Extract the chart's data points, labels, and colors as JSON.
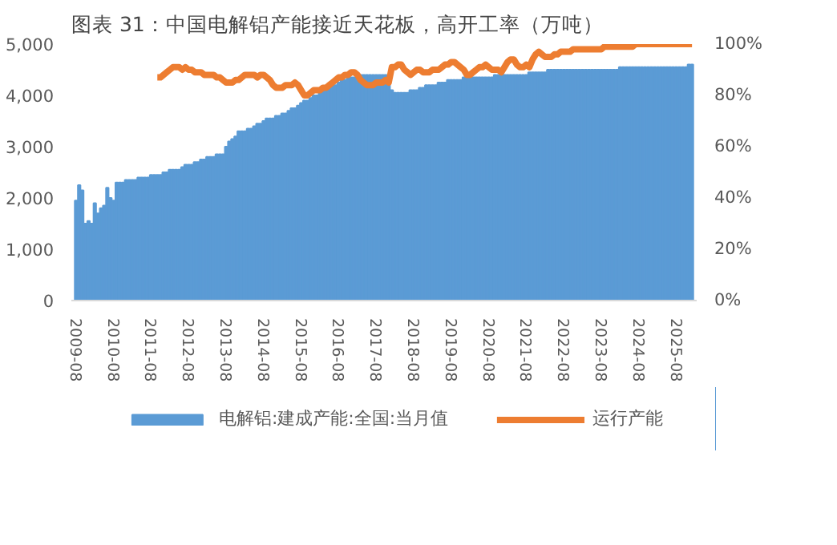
{
  "chart_data": {
    "type": "bar",
    "title": "图表 31：中国电解铝产能接近天花板，高开工率（万吨）",
    "categories": [
      "2009-08",
      null,
      null,
      null,
      null,
      null,
      null,
      null,
      null,
      null,
      null,
      null,
      "2010-08",
      null,
      null,
      null,
      null,
      null,
      null,
      null,
      null,
      null,
      null,
      null,
      "2011-08",
      null,
      null,
      null,
      null,
      null,
      null,
      null,
      null,
      null,
      null,
      null,
      "2012-08",
      null,
      null,
      null,
      null,
      null,
      null,
      null,
      null,
      null,
      null,
      null,
      "2013-08",
      null,
      null,
      null,
      null,
      null,
      null,
      null,
      null,
      null,
      null,
      null,
      "2014-08",
      null,
      null,
      null,
      null,
      null,
      null,
      null,
      null,
      null,
      null,
      null,
      "2015-08",
      null,
      null,
      null,
      null,
      null,
      null,
      null,
      null,
      null,
      null,
      null,
      "2016-08",
      null,
      null,
      null,
      null,
      null,
      null,
      null,
      null,
      null,
      null,
      null,
      "2017-08",
      null,
      null,
      null,
      null,
      null,
      null,
      null,
      null,
      null,
      null,
      null,
      "2018-08",
      null,
      null,
      null,
      null,
      null,
      null,
      null,
      null,
      null,
      null,
      null,
      "2019-08",
      null,
      null,
      null,
      null,
      null,
      null,
      null,
      null,
      null,
      null,
      null,
      "2020-08",
      null,
      null,
      null,
      null,
      null,
      null,
      null,
      null,
      null,
      null,
      null,
      "2021-08",
      null,
      null,
      null,
      null,
      null,
      null,
      null,
      null,
      null,
      null,
      null,
      "2022-08",
      null,
      null,
      null,
      null,
      null,
      null,
      null,
      null,
      null,
      null,
      null,
      "2023-08",
      null,
      null,
      null,
      null,
      null,
      null,
      null,
      null,
      null,
      null,
      null,
      "2024-08",
      null,
      null,
      null,
      null,
      null,
      null,
      null,
      null,
      null,
      null,
      null,
      "2025-08",
      null,
      null,
      null,
      null,
      null
    ],
    "series": [
      {
        "name": "电解铝:建成产能:全国:当月值",
        "color": "#5b9bd5",
        "values": [
          1950,
          2250,
          2150,
          1500,
          1550,
          1500,
          1900,
          1700,
          1800,
          1850,
          2200,
          2000,
          1950,
          2300,
          2300,
          2300,
          2350,
          2350,
          2350,
          2350,
          2400,
          2400,
          2400,
          2400,
          2450,
          2450,
          2450,
          2450,
          2500,
          2500,
          2550,
          2550,
          2550,
          2550,
          2600,
          2650,
          2650,
          2650,
          2700,
          2700,
          2750,
          2750,
          2800,
          2800,
          2800,
          2850,
          2850,
          2850,
          3000,
          3100,
          3150,
          3200,
          3300,
          3300,
          3300,
          3350,
          3350,
          3400,
          3450,
          3450,
          3500,
          3550,
          3550,
          3550,
          3600,
          3600,
          3650,
          3650,
          3700,
          3750,
          3750,
          3800,
          3850,
          3900,
          3900,
          3950,
          4000,
          4000,
          4050,
          4100,
          4100,
          4150,
          4200,
          4200,
          4250,
          4300,
          4300,
          4350,
          4350,
          4350,
          4400,
          4400,
          4400,
          4400,
          4400,
          4400,
          4400,
          4400,
          4400,
          4400,
          4400,
          4100,
          4050,
          4050,
          4050,
          4050,
          4050,
          4100,
          4100,
          4100,
          4150,
          4150,
          4200,
          4200,
          4200,
          4200,
          4250,
          4250,
          4250,
          4300,
          4300,
          4300,
          4300,
          4300,
          4350,
          4350,
          4350,
          4350,
          4350,
          4350,
          4350,
          4350,
          4350,
          4350,
          4400,
          4400,
          4400,
          4400,
          4400,
          4400,
          4400,
          4400,
          4400,
          4400,
          4400,
          4450,
          4450,
          4450,
          4450,
          4450,
          4450,
          4500,
          4500,
          4500,
          4500,
          4500,
          4500,
          4500,
          4500,
          4500,
          4500,
          4500,
          4500,
          4500,
          4500,
          4500,
          4500,
          4500,
          4500,
          4500,
          4500,
          4500,
          4500,
          4500,
          4550,
          4550,
          4550,
          4550,
          4550,
          4550,
          4550,
          4550,
          4550,
          4550,
          4550,
          4550,
          4550,
          4550,
          4550,
          4550,
          4550,
          4550,
          4550,
          4550,
          4550,
          4550,
          4600,
          4600
        ]
      },
      {
        "name": "运行产能",
        "type": "line",
        "axis": "y2",
        "color": "#ed7d31",
        "values": [
          null,
          null,
          null,
          null,
          null,
          null,
          null,
          null,
          null,
          null,
          null,
          null,
          null,
          null,
          null,
          null,
          null,
          null,
          null,
          null,
          null,
          null,
          null,
          null,
          null,
          null,
          87,
          87,
          88,
          89,
          90,
          91,
          91,
          91,
          90,
          91,
          90,
          90,
          89,
          89,
          89,
          88,
          88,
          88,
          88,
          87,
          87,
          86,
          85,
          85,
          85,
          86,
          86,
          87,
          88,
          88,
          88,
          88,
          87,
          88,
          88,
          87,
          86,
          84,
          83,
          83,
          83,
          84,
          84,
          84,
          85,
          84,
          82,
          80,
          80,
          81,
          82,
          82,
          82,
          83,
          83,
          84,
          85,
          86,
          87,
          87,
          88,
          88,
          89,
          89,
          88,
          86,
          85,
          84,
          84,
          84,
          85,
          85,
          85,
          86,
          85,
          91,
          91,
          92,
          92,
          90,
          89,
          88,
          89,
          90,
          90,
          89,
          89,
          89,
          90,
          90,
          90,
          91,
          92,
          92,
          93,
          93,
          92,
          91,
          90,
          88,
          88,
          89,
          90,
          91,
          91,
          92,
          91,
          90,
          90,
          90,
          89,
          91,
          93,
          94,
          94,
          92,
          91,
          91,
          92,
          91,
          94,
          96,
          97,
          96,
          95,
          95,
          95,
          96,
          96,
          97,
          97,
          97,
          97,
          98,
          98,
          98,
          98,
          98,
          98,
          98,
          98,
          98,
          98,
          99,
          99,
          99,
          99,
          99,
          99,
          99,
          99,
          99,
          99,
          100,
          100,
          100,
          100,
          100,
          100,
          100,
          100,
          100,
          100,
          100,
          100,
          100,
          100,
          100,
          100,
          100,
          100,
          100
        ]
      }
    ],
    "ylim": [
      0,
      5000
    ],
    "yticks": [
      0,
      {
        "value": 1000,
        "label": "1,000"
      },
      {
        "value": 2000,
        "label": "2,000"
      },
      {
        "value": 3000,
        "label": "3,000"
      },
      {
        "value": 4000,
        "label": "4,000"
      },
      {
        "value": 5000,
        "label": "5,000"
      }
    ],
    "y2lim": [
      0,
      100
    ],
    "y2ticks": [
      {
        "value": 0,
        "label": "0%"
      },
      {
        "value": 20,
        "label": "20%"
      },
      {
        "value": 40,
        "label": "40%"
      },
      {
        "value": 60,
        "label": "60%"
      },
      {
        "value": 80,
        "label": "80%"
      },
      {
        "value": 100,
        "label": "100%"
      }
    ],
    "grid": false,
    "legend": "bottom"
  }
}
